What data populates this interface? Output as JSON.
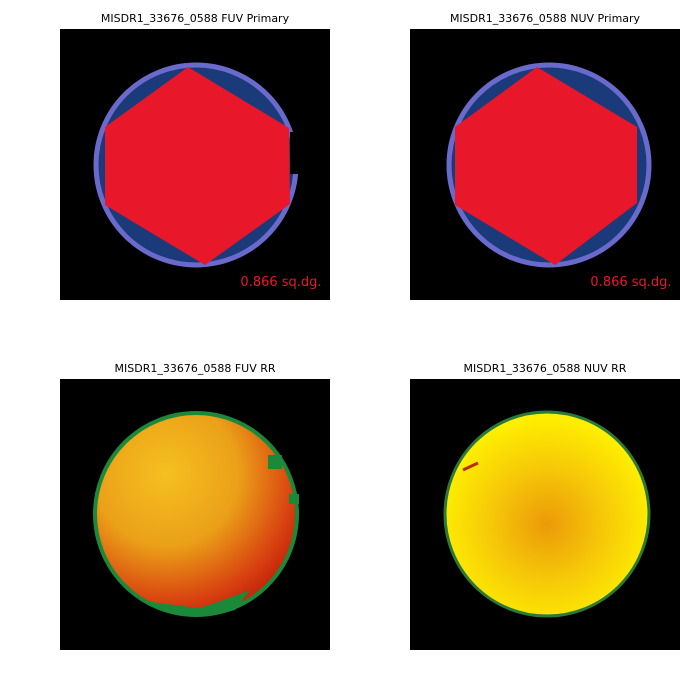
{
  "panels": [
    {
      "title": "MISDR1_33676_0588 FUV Primary",
      "annotation": "0.866 sq.dg."
    },
    {
      "title": "MISDR1_33676_0588 NUV Primary",
      "annotation": "0.866 sq.dg."
    },
    {
      "title": "MISDR1_33676_0588 FUV RR"
    },
    {
      "title": "MISDR1_33676_0588 NUV RR"
    }
  ]
}
